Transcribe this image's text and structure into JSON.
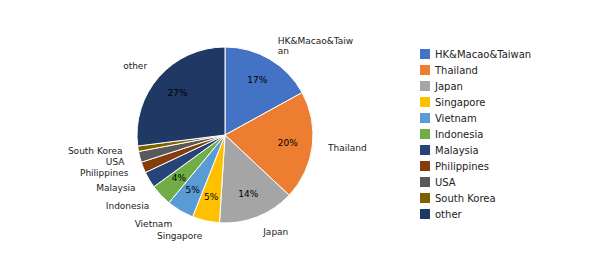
{
  "chart_data": {
    "type": "pie",
    "categories": [
      "HK&Macao&Taiwan",
      "Thailand",
      "Japan",
      "Singapore",
      "Vietnam",
      "Indonesia",
      "Malaysia",
      "Philippines",
      "USA",
      "South Korea",
      "other"
    ],
    "slice_labels": [
      "HK&Macao&Taiw\nan",
      "Thailand",
      "Japan",
      "Singapore",
      "Vietnam",
      "Indonesia",
      "Malaysia",
      "Philippines",
      "USA",
      "South Korea",
      "other"
    ],
    "values": [
      17,
      20,
      14,
      5,
      5,
      4,
      3,
      2,
      2,
      1,
      27
    ],
    "value_labels": [
      "17%",
      "20%",
      "14%",
      "5%",
      "5%",
      "4%",
      null,
      null,
      null,
      null,
      "27%"
    ],
    "colors": [
      "#4472C4",
      "#ED7D31",
      "#A5A5A5",
      "#FFC000",
      "#5B9BD5",
      "#70AD47",
      "#264478",
      "#843C0C",
      "#595959",
      "#7F6000",
      "#1F3864"
    ],
    "data_labels": true,
    "legend": "right"
  }
}
